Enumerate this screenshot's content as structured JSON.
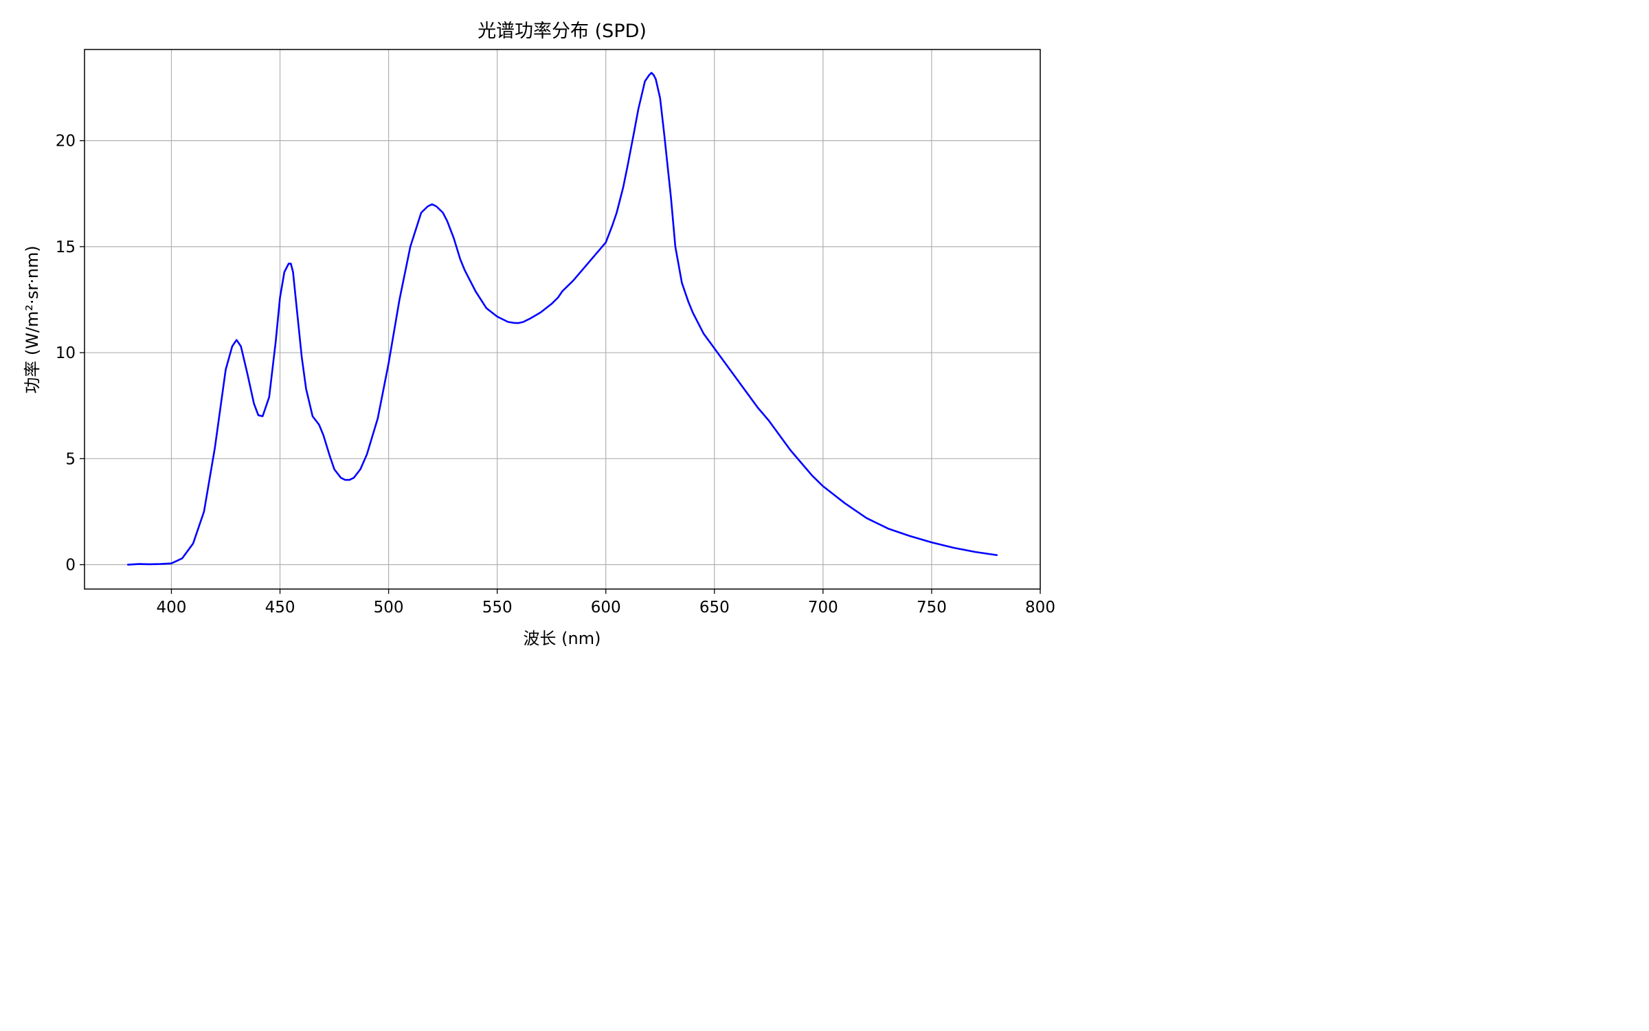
{
  "chart_data": {
    "type": "line",
    "title": "光谱功率分布 (SPD)",
    "xlabel": "波长 (nm)",
    "ylabel": "功率 (W/m²·sr·nm)",
    "xlim": [
      360,
      800
    ],
    "ylim": [
      -1.15,
      24.3
    ],
    "xticks": [
      400,
      450,
      500,
      550,
      600,
      650,
      700,
      750,
      800
    ],
    "yticks": [
      0,
      5,
      10,
      15,
      20
    ],
    "grid": true,
    "series": [
      {
        "color": "#0000ff",
        "x": [
          380,
          385,
          390,
          395,
          400,
          405,
          410,
          415,
          420,
          425,
          428,
          430,
          432,
          435,
          438,
          440,
          442,
          445,
          448,
          450,
          452,
          454,
          455,
          456,
          458,
          460,
          462,
          465,
          468,
          470,
          473,
          475,
          478,
          480,
          482,
          484,
          487,
          490,
          495,
          500,
          505,
          510,
          515,
          518,
          520,
          522,
          523,
          525,
          527,
          530,
          533,
          535,
          540,
          545,
          550,
          555,
          558,
          560,
          562,
          565,
          570,
          575,
          578,
          580,
          585,
          590,
          595,
          600,
          603,
          605,
          608,
          610,
          613,
          615,
          618,
          620,
          621,
          622,
          623,
          625,
          627,
          630,
          632,
          635,
          638,
          640,
          643,
          645,
          650,
          655,
          660,
          665,
          670,
          675,
          680,
          685,
          690,
          695,
          700,
          710,
          720,
          730,
          740,
          750,
          760,
          770,
          780
        ],
        "y": [
          0.0,
          0.03,
          0.02,
          0.03,
          0.06,
          0.3,
          1.0,
          2.5,
          5.5,
          9.2,
          10.3,
          10.6,
          10.3,
          9.0,
          7.6,
          7.05,
          7.0,
          7.9,
          10.5,
          12.6,
          13.8,
          14.2,
          14.2,
          13.8,
          11.8,
          9.8,
          8.3,
          7.0,
          6.6,
          6.1,
          5.1,
          4.5,
          4.1,
          4.0,
          4.0,
          4.1,
          4.5,
          5.2,
          6.9,
          9.5,
          12.5,
          15.0,
          16.6,
          16.9,
          17.0,
          16.9,
          16.8,
          16.6,
          16.2,
          15.4,
          14.4,
          13.9,
          12.9,
          12.1,
          11.7,
          11.45,
          11.4,
          11.4,
          11.45,
          11.6,
          11.9,
          12.3,
          12.6,
          12.9,
          13.4,
          14.0,
          14.6,
          15.2,
          16.0,
          16.6,
          17.8,
          18.8,
          20.4,
          21.5,
          22.8,
          23.1,
          23.2,
          23.1,
          22.9,
          22.0,
          20.2,
          17.3,
          15.0,
          13.3,
          12.4,
          11.9,
          11.3,
          10.9,
          10.2,
          9.5,
          8.8,
          8.1,
          7.4,
          6.8,
          6.1,
          5.4,
          4.8,
          4.2,
          3.7,
          2.9,
          2.2,
          1.7,
          1.35,
          1.05,
          0.8,
          0.6,
          0.45
        ]
      }
    ]
  }
}
